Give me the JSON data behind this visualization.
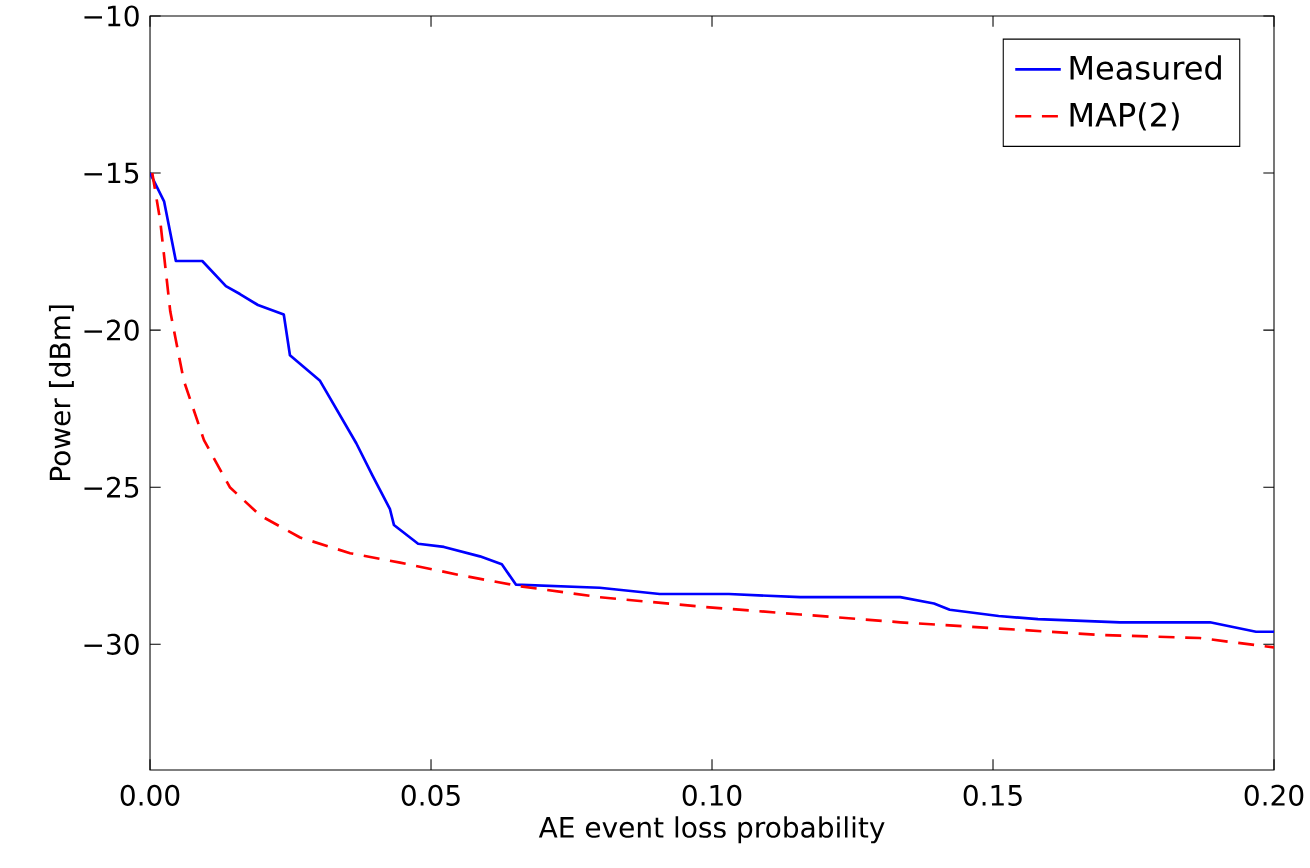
{
  "chart_data": {
    "type": "line",
    "xlabel": "AE event loss probability",
    "ylabel": "Power [dBm]",
    "xlim": [
      0,
      0.2
    ],
    "ylim": [
      -34,
      -10
    ],
    "xticks": [
      {
        "value": 0,
        "label": "0.00"
      },
      {
        "value": 0.05,
        "label": "0.05"
      },
      {
        "value": 0.1,
        "label": "0.10"
      },
      {
        "value": 0.15,
        "label": "0.15"
      },
      {
        "value": 0.2,
        "label": "0.20"
      }
    ],
    "yticks": [
      {
        "value": -30,
        "label": "−30"
      },
      {
        "value": -25,
        "label": "−25"
      },
      {
        "value": -20,
        "label": "−20"
      },
      {
        "value": -15,
        "label": "−15"
      },
      {
        "value": -10,
        "label": "−10"
      }
    ],
    "legend": "top right",
    "grid": false,
    "series": [
      {
        "name": "Measured",
        "color": "#0000ff",
        "line_style": "solid",
        "x": [
          0,
          0.0025,
          0.0046,
          0.0093,
          0.0135,
          0.016,
          0.0192,
          0.0238,
          0.0249,
          0.0302,
          0.0367,
          0.0395,
          0.0427,
          0.0434,
          0.0477,
          0.0523,
          0.0587,
          0.0626,
          0.0651,
          0.08,
          0.0907,
          0.103,
          0.1157,
          0.1335,
          0.1395,
          0.1423,
          0.151,
          0.158,
          0.1726,
          0.1886,
          0.1968,
          0.2
        ],
        "values": [
          -15.0,
          -15.9,
          -17.8,
          -17.8,
          -18.6,
          -18.85,
          -19.2,
          -19.5,
          -20.8,
          -21.6,
          -23.6,
          -24.6,
          -25.7,
          -26.2,
          -26.8,
          -26.9,
          -27.2,
          -27.45,
          -28.1,
          -28.2,
          -28.4,
          -28.4,
          -28.5,
          -28.5,
          -28.7,
          -28.9,
          -29.1,
          -29.2,
          -29.3,
          -29.3,
          -29.6,
          -29.6
        ]
      },
      {
        "name": "MAP(2)",
        "color": "#ff0000",
        "line_style": "dashed",
        "x": [
          0.0004,
          0.0018,
          0.0036,
          0.006,
          0.0096,
          0.0142,
          0.0196,
          0.0267,
          0.0356,
          0.0445,
          0.0552,
          0.0658,
          0.08,
          0.0979,
          0.1157,
          0.1335,
          0.1512,
          0.169,
          0.1868,
          0.2
        ],
        "values": [
          -15.0,
          -16.5,
          -19.4,
          -21.6,
          -23.5,
          -25.0,
          -25.9,
          -26.6,
          -27.1,
          -27.4,
          -27.8,
          -28.15,
          -28.5,
          -28.8,
          -29.05,
          -29.3,
          -29.5,
          -29.7,
          -29.8,
          -30.1
        ]
      }
    ]
  }
}
